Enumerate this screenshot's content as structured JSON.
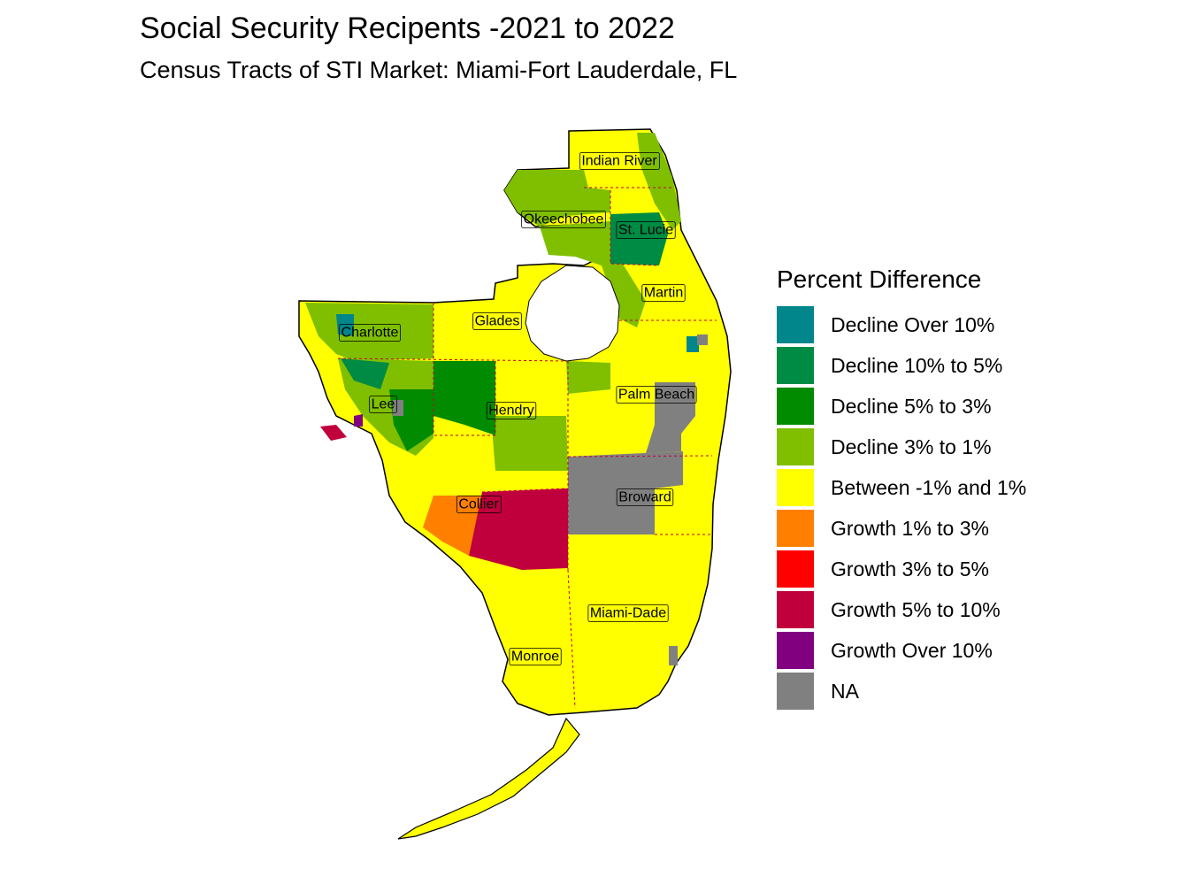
{
  "title": "Social Security Recipents -2021 to 2022",
  "subtitle": "Census Tracts of STI Market: Miami-Fort Lauderdale, FL",
  "legend": {
    "title": "Percent Difference",
    "items": [
      {
        "label": "Decline Over 10%",
        "color": "#00868B"
      },
      {
        "label": "Decline 10% to 5%",
        "color": "#008B45"
      },
      {
        "label": "Decline 5% to 3%",
        "color": "#008B00"
      },
      {
        "label": "Decline 3% to 1%",
        "color": "#7FBF00"
      },
      {
        "label": "Between -1% and 1%",
        "color": "#FFFF00"
      },
      {
        "label": "Growth 1% to 3%",
        "color": "#FF8000"
      },
      {
        "label": "Growth 3% to 5%",
        "color": "#FF0000"
      },
      {
        "label": "Growth 5% to 10%",
        "color": "#C0003C"
      },
      {
        "label": "Growth Over 10%",
        "color": "#800080"
      },
      {
        "label": "NA",
        "color": "#808080"
      }
    ]
  },
  "counties": [
    {
      "name": "Indian River"
    },
    {
      "name": "Okeechobee"
    },
    {
      "name": "St. Lucie"
    },
    {
      "name": "Martin"
    },
    {
      "name": "Glades"
    },
    {
      "name": "Charlotte"
    },
    {
      "name": "Palm Beach"
    },
    {
      "name": "Lee"
    },
    {
      "name": "Hendry"
    },
    {
      "name": "Broward"
    },
    {
      "name": "Collier"
    },
    {
      "name": "Miami-Dade"
    },
    {
      "name": "Monroe"
    }
  ]
}
